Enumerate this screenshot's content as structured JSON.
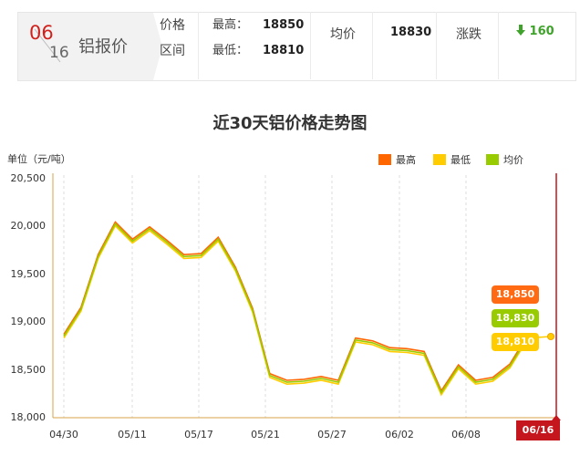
{
  "header": {
    "month": "06",
    "day": "16",
    "metal": "铝报价",
    "price_label_1": "价格",
    "price_label_2": "区间",
    "high_label": "最高：",
    "high_value": "18850",
    "low_label": "最低：",
    "low_value": "18810",
    "avg_label": "均价",
    "avg_value": "18830",
    "change_label": "涨跌",
    "change_value": "160",
    "change_color": "#3fa32b"
  },
  "chart_data": {
    "type": "line",
    "title": "近30天铝价格走势图",
    "unit_label": "单位（元/吨）",
    "ylim": [
      18000,
      20500
    ],
    "yticks": [
      "20,500",
      "20,000",
      "19,500",
      "19,000",
      "18,500",
      "18,000"
    ],
    "xticks": [
      "04/30",
      "05/11",
      "05/17",
      "05/21",
      "05/27",
      "06/02",
      "06/08"
    ],
    "current_date": "06/16",
    "legend": [
      {
        "name": "最高",
        "color": "#ff6600"
      },
      {
        "name": "最低",
        "color": "#ffcc00"
      },
      {
        "name": "均价",
        "color": "#99cc00"
      }
    ],
    "series": [
      {
        "name": "最高",
        "color": "#ff6600",
        "values": [
          18870,
          19150,
          19700,
          20040,
          19860,
          19990,
          19850,
          19700,
          19710,
          19880,
          19570,
          19140,
          18460,
          18390,
          18400,
          18430,
          18390,
          18830,
          18800,
          18730,
          18720,
          18690,
          18280,
          18550,
          18390,
          18420,
          18560,
          18850
        ]
      },
      {
        "name": "最低",
        "color": "#ffcc00",
        "values": [
          18830,
          19110,
          19660,
          20000,
          19820,
          19950,
          19810,
          19660,
          19670,
          19840,
          19530,
          19100,
          18420,
          18350,
          18360,
          18390,
          18350,
          18790,
          18760,
          18690,
          18680,
          18650,
          18240,
          18510,
          18350,
          18380,
          18520,
          18810
        ]
      },
      {
        "name": "均价",
        "color": "#99cc00",
        "values": [
          18850,
          19130,
          19680,
          20020,
          19840,
          19970,
          19830,
          19680,
          19690,
          19860,
          19550,
          19120,
          18440,
          18370,
          18380,
          18410,
          18370,
          18810,
          18780,
          18710,
          18700,
          18670,
          18260,
          18530,
          18370,
          18400,
          18540,
          18830
        ]
      }
    ],
    "end_labels": {
      "high": "18,850",
      "avg": "18,830",
      "low": "18,810"
    },
    "grid": "vertical-dashed"
  }
}
